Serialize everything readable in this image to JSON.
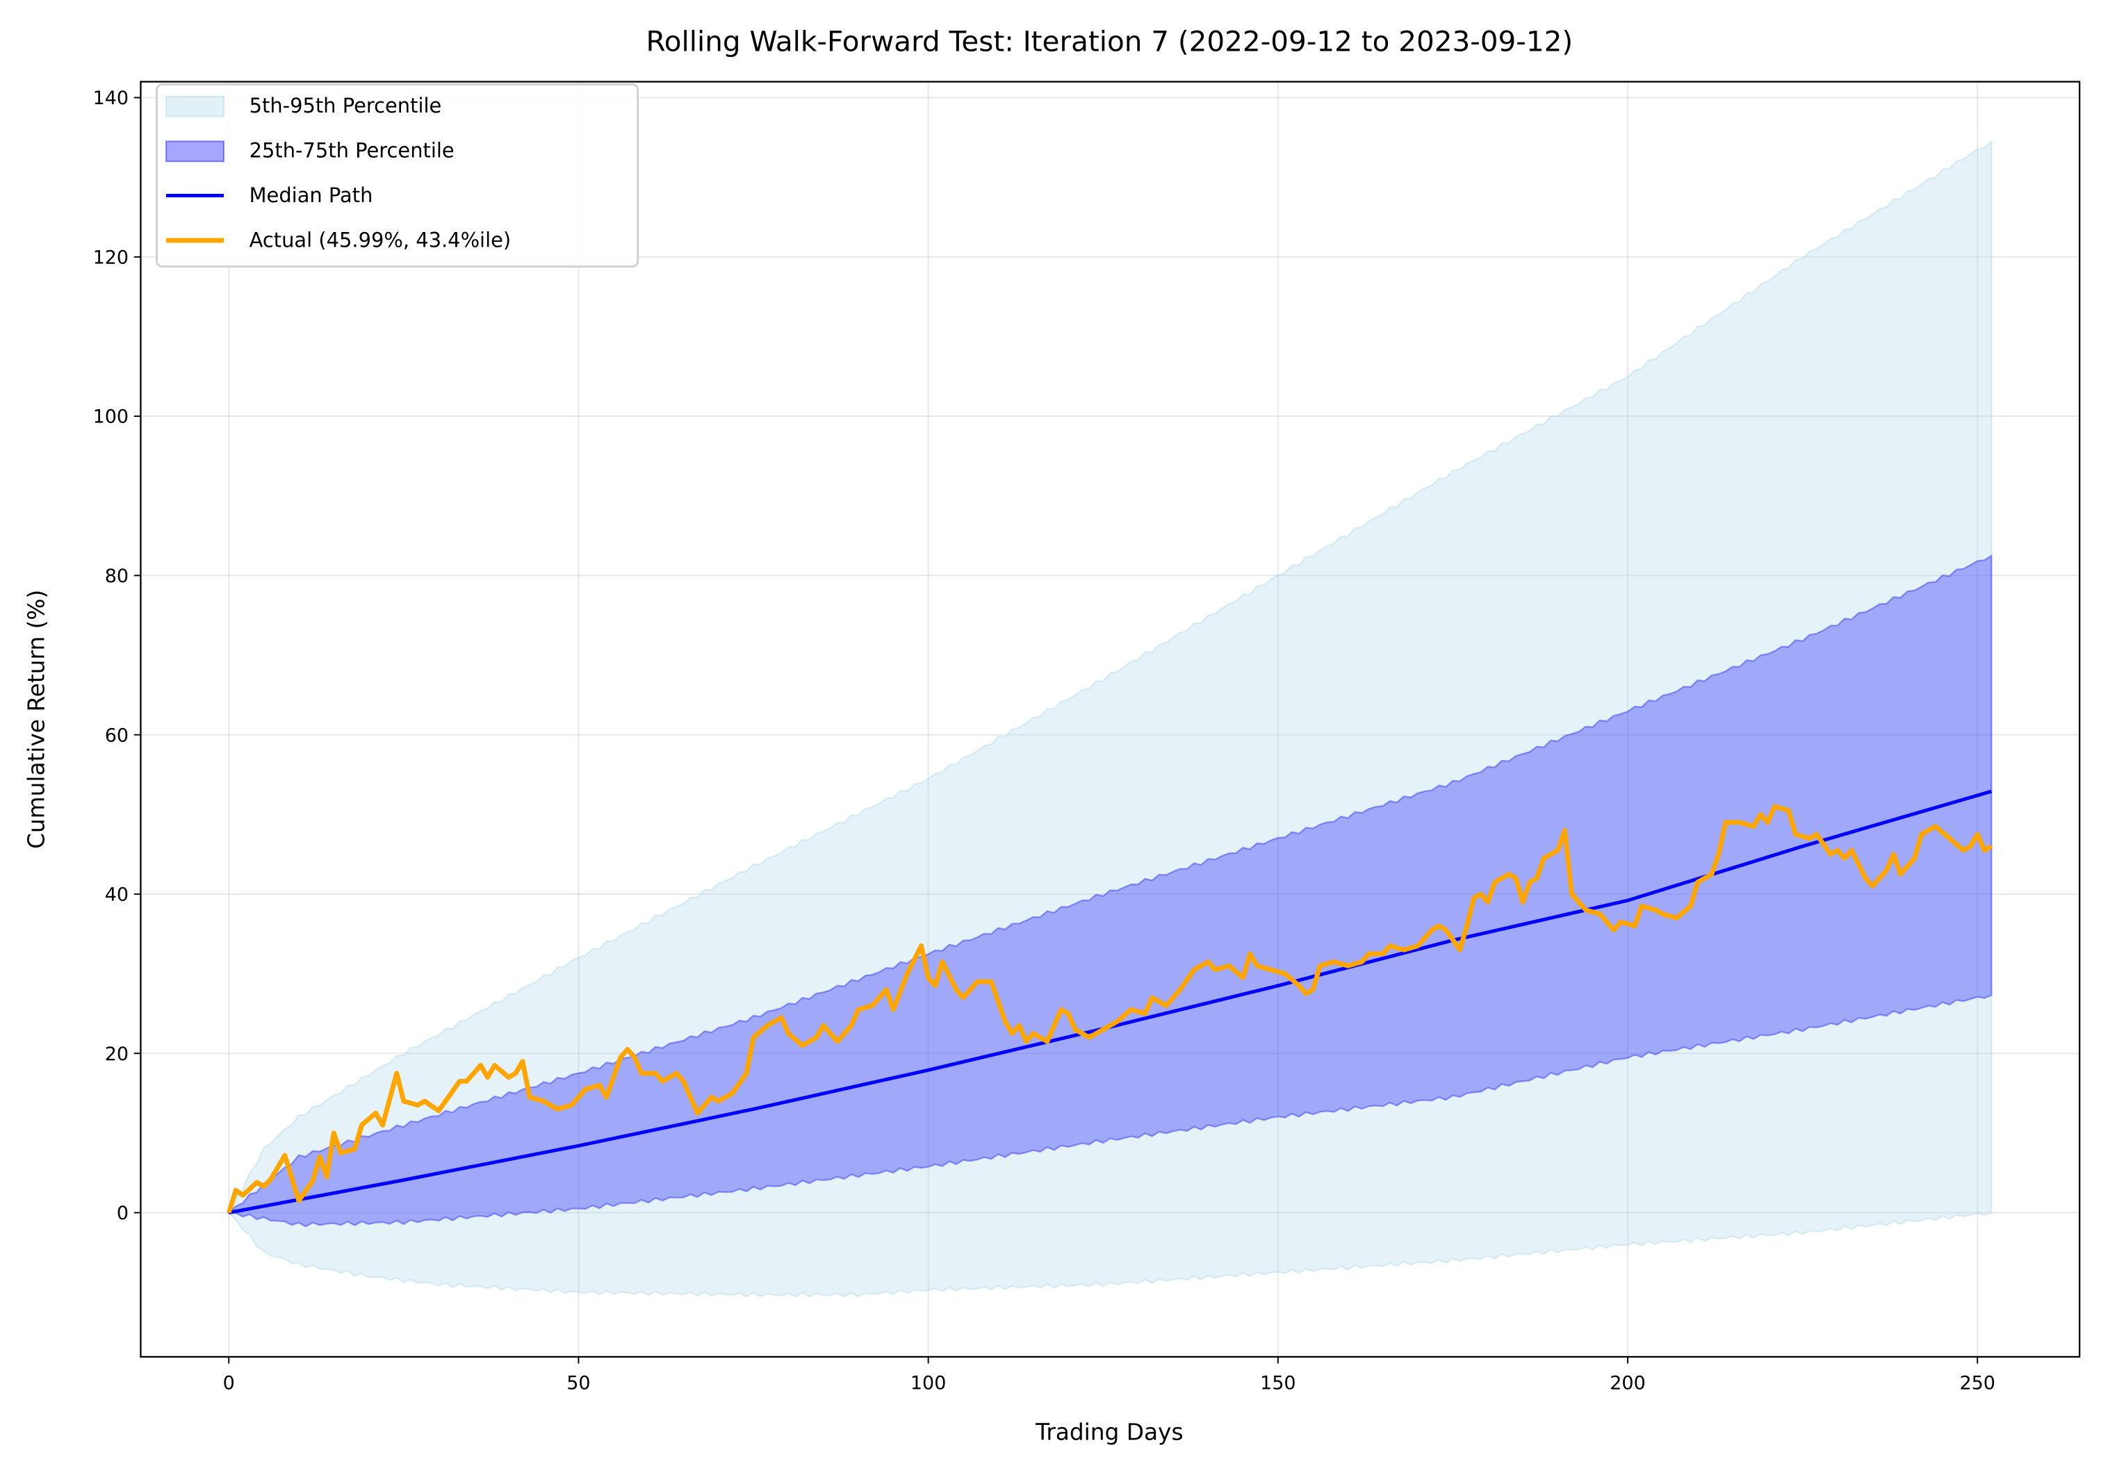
{
  "chart_data": {
    "type": "area",
    "title": "Rolling Walk-Forward Test: Iteration 7 (2022-09-12 to 2023-09-12)",
    "xlabel": "Trading Days",
    "ylabel": "Cumulative Return (%)",
    "xlim": [
      -12.6,
      264.6
    ],
    "ylim": [
      -18.1,
      142
    ],
    "xticks": [
      0,
      50,
      100,
      150,
      200,
      250
    ],
    "yticks": [
      0,
      20,
      40,
      60,
      80,
      100,
      120,
      140
    ],
    "grid": true,
    "legend_position": "top-left",
    "legend": [
      {
        "label": "5th-95th Percentile",
        "kind": "band",
        "color": "#add8e6"
      },
      {
        "label": "25th-75th Percentile",
        "kind": "band",
        "color": "#0000ff"
      },
      {
        "label": "Median Path",
        "kind": "line",
        "color": "#0000ff"
      },
      {
        "label": "Actual (45.99%, 43.4%ile)",
        "kind": "line",
        "color": "#ffa500"
      }
    ],
    "series": [
      {
        "name": "5th-95th Percentile",
        "type": "band",
        "lower": [
          [
            0,
            0
          ],
          [
            5,
            -5
          ],
          [
            10,
            -6.5
          ],
          [
            20,
            -8
          ],
          [
            30,
            -9
          ],
          [
            50,
            -10
          ],
          [
            75,
            -10.3
          ],
          [
            90,
            -10.3
          ],
          [
            100,
            -9.7
          ],
          [
            125,
            -9
          ],
          [
            150,
            -7.5
          ],
          [
            175,
            -6
          ],
          [
            200,
            -4
          ],
          [
            225,
            -2.5
          ],
          [
            252,
            0
          ]
        ],
        "upper": [
          [
            0,
            0
          ],
          [
            5,
            8
          ],
          [
            10,
            12
          ],
          [
            25,
            20
          ],
          [
            50,
            32
          ],
          [
            75,
            43.5
          ],
          [
            100,
            54.5
          ],
          [
            125,
            67
          ],
          [
            150,
            80
          ],
          [
            175,
            93
          ],
          [
            200,
            105
          ],
          [
            225,
            120
          ],
          [
            252,
            134.5
          ]
        ]
      },
      {
        "name": "25th-75th Percentile",
        "type": "band",
        "lower": [
          [
            0,
            0
          ],
          [
            10,
            -1.5
          ],
          [
            25,
            -1.2
          ],
          [
            50,
            0.5
          ],
          [
            75,
            3
          ],
          [
            100,
            5.8
          ],
          [
            125,
            9
          ],
          [
            150,
            12
          ],
          [
            175,
            14.5
          ],
          [
            200,
            19.5
          ],
          [
            225,
            23
          ],
          [
            252,
            27.3
          ]
        ],
        "upper": [
          [
            0,
            0
          ],
          [
            10,
            7
          ],
          [
            25,
            11
          ],
          [
            50,
            17.5
          ],
          [
            75,
            24.5
          ],
          [
            100,
            32.5
          ],
          [
            125,
            40
          ],
          [
            150,
            47
          ],
          [
            175,
            54
          ],
          [
            200,
            63
          ],
          [
            225,
            72
          ],
          [
            252,
            82.5
          ]
        ]
      },
      {
        "name": "Median Path",
        "type": "line",
        "points": [
          [
            0,
            0
          ],
          [
            25,
            4.1
          ],
          [
            50,
            8.4
          ],
          [
            75,
            13.0
          ],
          [
            100,
            17.9
          ],
          [
            125,
            23.1
          ],
          [
            150,
            28.5
          ],
          [
            175,
            34.2
          ],
          [
            200,
            39.2
          ],
          [
            225,
            46.0
          ],
          [
            252,
            52.9
          ]
        ]
      },
      {
        "name": "Actual (45.99%, 43.4%ile)",
        "type": "line",
        "points": [
          [
            0,
            0
          ],
          [
            1,
            2.8
          ],
          [
            2,
            2.2
          ],
          [
            4,
            3.8
          ],
          [
            5,
            3.3
          ],
          [
            6,
            4.2
          ],
          [
            8,
            7.2
          ],
          [
            10,
            1.5
          ],
          [
            12,
            4
          ],
          [
            13,
            7
          ],
          [
            14,
            4.5
          ],
          [
            15,
            10
          ],
          [
            16,
            7.5
          ],
          [
            18,
            8
          ],
          [
            19,
            11
          ],
          [
            21,
            12.5
          ],
          [
            22,
            11
          ],
          [
            24,
            17.5
          ],
          [
            25,
            14
          ],
          [
            27,
            13.5
          ],
          [
            28,
            14
          ],
          [
            30,
            12.8
          ],
          [
            33,
            16.5
          ],
          [
            34,
            16.5
          ],
          [
            35,
            17.5
          ],
          [
            36,
            18.5
          ],
          [
            37,
            17
          ],
          [
            38,
            18.5
          ],
          [
            40,
            17
          ],
          [
            41,
            17.5
          ],
          [
            42,
            19
          ],
          [
            43,
            14.5
          ],
          [
            45,
            14
          ],
          [
            47,
            13
          ],
          [
            49,
            13.5
          ],
          [
            51,
            15.5
          ],
          [
            53,
            16
          ],
          [
            54,
            14.5
          ],
          [
            56,
            19.5
          ],
          [
            57,
            20.5
          ],
          [
            58,
            19.5
          ],
          [
            59,
            17.5
          ],
          [
            61,
            17.5
          ],
          [
            62,
            16.5
          ],
          [
            64,
            17.5
          ],
          [
            65,
            16.5
          ],
          [
            67,
            12.5
          ],
          [
            69,
            14.5
          ],
          [
            70,
            14
          ],
          [
            72,
            15
          ],
          [
            74,
            17.5
          ],
          [
            75,
            22
          ],
          [
            77,
            23.5
          ],
          [
            79,
            24.5
          ],
          [
            80,
            22.5
          ],
          [
            82,
            21
          ],
          [
            84,
            22
          ],
          [
            85,
            23.5
          ],
          [
            87,
            21.5
          ],
          [
            89,
            23.5
          ],
          [
            90,
            25.5
          ],
          [
            92,
            26
          ],
          [
            94,
            28
          ],
          [
            95,
            25.5
          ],
          [
            97,
            30
          ],
          [
            99,
            33.5
          ],
          [
            100,
            29.5
          ],
          [
            101,
            28.5
          ],
          [
            102,
            31.5
          ],
          [
            104,
            28
          ],
          [
            105,
            27
          ],
          [
            107,
            29
          ],
          [
            109,
            29
          ],
          [
            110,
            26.5
          ],
          [
            111,
            24
          ],
          [
            112,
            22.5
          ],
          [
            113,
            23.5
          ],
          [
            114,
            21.5
          ],
          [
            115,
            22.5
          ],
          [
            117,
            21.5
          ],
          [
            119,
            25.5
          ],
          [
            120,
            25
          ],
          [
            121,
            23
          ],
          [
            123,
            22
          ],
          [
            125,
            23
          ],
          [
            127,
            24
          ],
          [
            129,
            25.5
          ],
          [
            131,
            25
          ],
          [
            132,
            27
          ],
          [
            134,
            26
          ],
          [
            136,
            28
          ],
          [
            138,
            30.5
          ],
          [
            140,
            31.5
          ],
          [
            141,
            30.5
          ],
          [
            143,
            31
          ],
          [
            145,
            29.5
          ],
          [
            146,
            32.5
          ],
          [
            147,
            31
          ],
          [
            149,
            30.5
          ],
          [
            151,
            30
          ],
          [
            153,
            28.5
          ],
          [
            154,
            27.5
          ],
          [
            155,
            28
          ],
          [
            156,
            31
          ],
          [
            158,
            31.5
          ],
          [
            160,
            31
          ],
          [
            162,
            31.5
          ],
          [
            163,
            32.5
          ],
          [
            165,
            32.5
          ],
          [
            166,
            33.5
          ],
          [
            168,
            33
          ],
          [
            170,
            33.5
          ],
          [
            172,
            35.5
          ],
          [
            173,
            36
          ],
          [
            174,
            35.5
          ],
          [
            176,
            33
          ],
          [
            177,
            36
          ],
          [
            178,
            39.5
          ],
          [
            179,
            40
          ],
          [
            180,
            39
          ],
          [
            181,
            41.5
          ],
          [
            183,
            42.5
          ],
          [
            184,
            42
          ],
          [
            185,
            39
          ],
          [
            186,
            41.5
          ],
          [
            187,
            42
          ],
          [
            188,
            44.5
          ],
          [
            190,
            45.5
          ],
          [
            191,
            48
          ],
          [
            192,
            40
          ],
          [
            194,
            38
          ],
          [
            196,
            37.5
          ],
          [
            198,
            35.5
          ],
          [
            199,
            36.5
          ],
          [
            201,
            36
          ],
          [
            202,
            38.5
          ],
          [
            204,
            38
          ],
          [
            205,
            37.5
          ],
          [
            207,
            37
          ],
          [
            209,
            38.5
          ],
          [
            210,
            41.5
          ],
          [
            212,
            42.5
          ],
          [
            213,
            45
          ],
          [
            214,
            49
          ],
          [
            216,
            49
          ],
          [
            218,
            48.5
          ],
          [
            219,
            50
          ],
          [
            220,
            49
          ],
          [
            221,
            51
          ],
          [
            223,
            50.5
          ],
          [
            224,
            47.5
          ],
          [
            226,
            47
          ],
          [
            227,
            47.5
          ],
          [
            229,
            45
          ],
          [
            230,
            45.5
          ],
          [
            231,
            44.5
          ],
          [
            232,
            45.5
          ],
          [
            234,
            42
          ],
          [
            235,
            41
          ],
          [
            237,
            43
          ],
          [
            238,
            45
          ],
          [
            239,
            42.5
          ],
          [
            240,
            43.5
          ],
          [
            241,
            44.5
          ],
          [
            242,
            47.5
          ],
          [
            244,
            48.5
          ],
          [
            246,
            47
          ],
          [
            248,
            45.5
          ],
          [
            249,
            46
          ],
          [
            250,
            47.5
          ],
          [
            251,
            45.5
          ],
          [
            252,
            46
          ]
        ]
      }
    ]
  }
}
